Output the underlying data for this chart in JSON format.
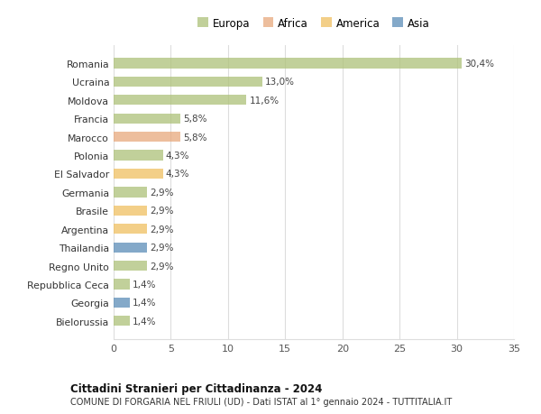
{
  "countries": [
    "Romania",
    "Ucraina",
    "Moldova",
    "Francia",
    "Marocco",
    "Polonia",
    "El Salvador",
    "Germania",
    "Brasile",
    "Argentina",
    "Thailandia",
    "Regno Unito",
    "Repubblica Ceca",
    "Georgia",
    "Bielorussia"
  ],
  "values": [
    30.4,
    13.0,
    11.6,
    5.8,
    5.8,
    4.3,
    4.3,
    2.9,
    2.9,
    2.9,
    2.9,
    2.9,
    1.4,
    1.4,
    1.4
  ],
  "labels": [
    "30,4%",
    "13,0%",
    "11,6%",
    "5,8%",
    "5,8%",
    "4,3%",
    "4,3%",
    "2,9%",
    "2,9%",
    "2,9%",
    "2,9%",
    "2,9%",
    "1,4%",
    "1,4%",
    "1,4%"
  ],
  "regions": [
    "Europa",
    "Europa",
    "Europa",
    "Europa",
    "Africa",
    "Europa",
    "America",
    "Europa",
    "America",
    "America",
    "Asia",
    "Europa",
    "Europa",
    "Asia",
    "Europa"
  ],
  "region_colors": {
    "Europa": "#adc178",
    "Africa": "#e8a87c",
    "America": "#f0c060",
    "Asia": "#5b8db8"
  },
  "legend_labels": [
    "Europa",
    "Africa",
    "America",
    "Asia"
  ],
  "legend_colors": [
    "#adc178",
    "#e8a87c",
    "#f0c060",
    "#5b8db8"
  ],
  "title": "Cittadini Stranieri per Cittadinanza - 2024",
  "subtitle": "COMUNE DI FORGARIA NEL FRIULI (UD) - Dati ISTAT al 1° gennaio 2024 - TUTTITALIA.IT",
  "xlim": [
    0,
    35
  ],
  "xticks": [
    0,
    5,
    10,
    15,
    20,
    25,
    30,
    35
  ],
  "background_color": "#ffffff",
  "grid_color": "#dddddd",
  "bar_alpha": 0.75,
  "bar_height": 0.55
}
